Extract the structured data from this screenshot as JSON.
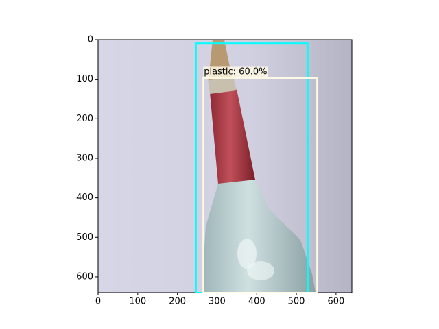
{
  "chart_data": {
    "type": "image",
    "xlim": [
      0,
      640
    ],
    "ylim": [
      640,
      0
    ],
    "xticks": [
      0,
      100,
      200,
      300,
      400,
      500,
      600
    ],
    "yticks": [
      0,
      100,
      200,
      300,
      400,
      500,
      600
    ],
    "boxes": [
      {
        "color": "#00ffff",
        "x": [
          247,
          529
        ],
        "y": [
          9,
          640
        ]
      },
      {
        "color": "#fffbe6",
        "label": "plastic: 60.0%",
        "x": [
          265,
          552
        ],
        "y": [
          97,
          640
        ]
      }
    ]
  }
}
